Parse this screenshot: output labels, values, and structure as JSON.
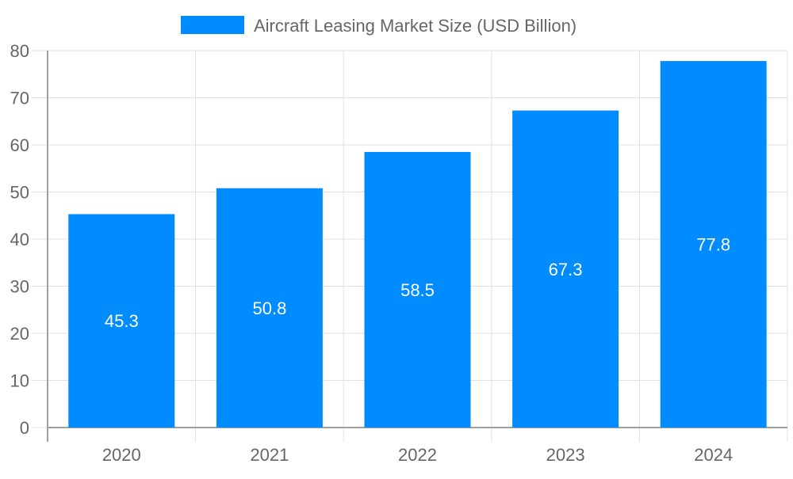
{
  "chart_data": {
    "type": "bar",
    "categories": [
      "2020",
      "2021",
      "2022",
      "2023",
      "2024"
    ],
    "series": [
      {
        "name": "Aircraft Leasing Market Size (USD Billion)",
        "values": [
          45.3,
          50.8,
          58.5,
          67.3,
          77.8
        ]
      }
    ],
    "title": "",
    "xlabel": "",
    "ylabel": "",
    "ylim": [
      0,
      80
    ],
    "yticks": [
      "0",
      "10",
      "20",
      "30",
      "40",
      "50",
      "60",
      "70",
      "80"
    ],
    "data_labels": [
      "45.3",
      "50.8",
      "58.5",
      "67.3",
      "77.8"
    ],
    "grid": true,
    "legend": "top-center",
    "colors": {
      "bar": "#008cff",
      "grid": "#e0e0e0",
      "axis": "#a0a0a0",
      "text": "#666666",
      "label": "#ffffff"
    }
  }
}
